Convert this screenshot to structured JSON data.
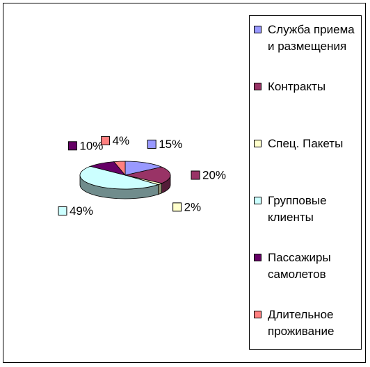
{
  "chart_data": {
    "type": "pie",
    "categories": [
      "Служба приема и размещения",
      "Контракты",
      "Спец. Пакеты",
      "Групповые клиенты",
      "Пассажиры самолетов",
      "Длительное проживание"
    ],
    "values": [
      15,
      20,
      2,
      49,
      10,
      4
    ],
    "value_labels": [
      "15%",
      "20%",
      "2%",
      "49%",
      "10%",
      "4%"
    ],
    "colors": [
      "#9999ff",
      "#993366",
      "#ffffcc",
      "#ccffff",
      "#660066",
      "#ff8080"
    ],
    "legend": "right"
  }
}
